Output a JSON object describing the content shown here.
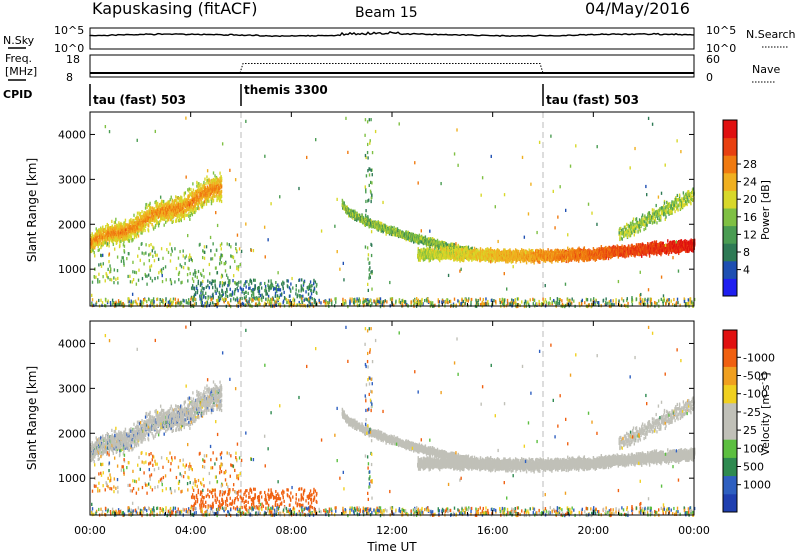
{
  "header": {
    "station": "Kapuskasing (fitACF)",
    "beam": "Beam 15",
    "date": "04/May/2016"
  },
  "panels": {
    "nsky_label": "N.Sky",
    "nsearch_label": "N.Search",
    "nsky_ticks": [
      "10^5",
      "10^0"
    ],
    "nsearch_ticks": [
      "10^5",
      "10^0"
    ],
    "freq_label_1": "Freq.",
    "freq_label_2": "[MHz]",
    "freq_ticks": [
      "18",
      "8"
    ],
    "nave_label": "Nave",
    "nave_ticks": [
      "60",
      "0"
    ],
    "cpid_label": "CPID",
    "cpid_segments": [
      {
        "label": "tau (fast) 503",
        "start_h": 0,
        "end_h": 6
      },
      {
        "label": "themis 3300",
        "start_h": 6,
        "end_h": 18
      },
      {
        "label": "tau (fast) 503",
        "start_h": 18,
        "end_h": 24
      }
    ]
  },
  "chart_data": [
    {
      "type": "heatmap",
      "quantity": "Power",
      "ylabel": "Slant Range [km]",
      "ylim": [
        180,
        4500
      ],
      "yticks": [
        1000,
        2000,
        3000,
        4000
      ],
      "xlim": [
        0,
        24
      ],
      "colorbar_label": "Power [dB]",
      "colorbar_ticks": [
        "4",
        "8",
        "12",
        "16",
        "20",
        "24",
        "28"
      ],
      "colorbar_colors": [
        "#1f1ff0",
        "#1e4fb2",
        "#2e7a55",
        "#4a9c52",
        "#7fc043",
        "#d8d82a",
        "#f0b020",
        "#f07a10",
        "#e84010",
        "#e01010"
      ],
      "color_scale": [
        0,
        30
      ],
      "scatter_regions": [
        {
          "name": "morning-echo",
          "path": [
            [
              0,
              1580,
              1850,
              8
            ],
            [
              1,
              1820,
              1800,
              12
            ],
            [
              2,
              2130,
              1750,
              15
            ],
            [
              3,
              2380,
              1800,
              17
            ],
            [
              4,
              2600,
              1850,
              18
            ],
            [
              4.8,
              2850,
              1900,
              18
            ]
          ],
          "width_km": 480,
          "power": [
            16,
            25
          ]
        },
        {
          "name": "arc-descend",
          "path": [
            [
              10.0,
              2450,
              2500,
              8
            ],
            [
              11.0,
              2050,
              2200,
              8
            ],
            [
              12.0,
              1700,
              1900,
              10
            ],
            [
              13.0,
              1450,
              1700,
              13
            ],
            [
              14.0,
              1320,
              1500,
              15
            ],
            [
              16.0,
              1250,
              1400,
              17
            ]
          ],
          "width_km": 330,
          "power": [
            10,
            24
          ]
        },
        {
          "name": "afternoon-band",
          "path": [
            [
              16.0,
              1280,
              1400,
              18
            ],
            [
              18.0,
              1320,
              1450,
              22
            ],
            [
              20.0,
              1400,
              1500,
              24
            ],
            [
              22.0,
              1480,
              1600,
              26
            ],
            [
              23.8,
              1520,
              1700,
              28
            ]
          ],
          "width_km": 420,
          "power": [
            18,
            30
          ]
        }
      ]
    },
    {
      "type": "heatmap",
      "quantity": "Velocity",
      "ylabel": "Slant Range [km]",
      "ylim": [
        180,
        4500
      ],
      "yticks": [
        1000,
        2000,
        3000,
        4000
      ],
      "xlim": [
        0,
        24
      ],
      "colorbar_label": "Velocity [m s-1]",
      "colorbar_ticks": [
        "1000",
        "500",
        "100",
        "25",
        "-25",
        "-100",
        "-500",
        "-1000"
      ],
      "colorbar_colors": [
        "#1f3fb0",
        "#2e5fc0",
        "#2e8a50",
        "#5cbf40",
        "#c0c0b8",
        "#c0c0b8",
        "#f0d020",
        "#f0a020",
        "#f06010",
        "#e01010"
      ],
      "color_scale": [
        -1000,
        1000
      ]
    }
  ],
  "xaxis": {
    "ticks": [
      "00:00",
      "04:00",
      "08:00",
      "12:00",
      "16:00",
      "20:00",
      "00:00"
    ],
    "label": "Time UT"
  }
}
